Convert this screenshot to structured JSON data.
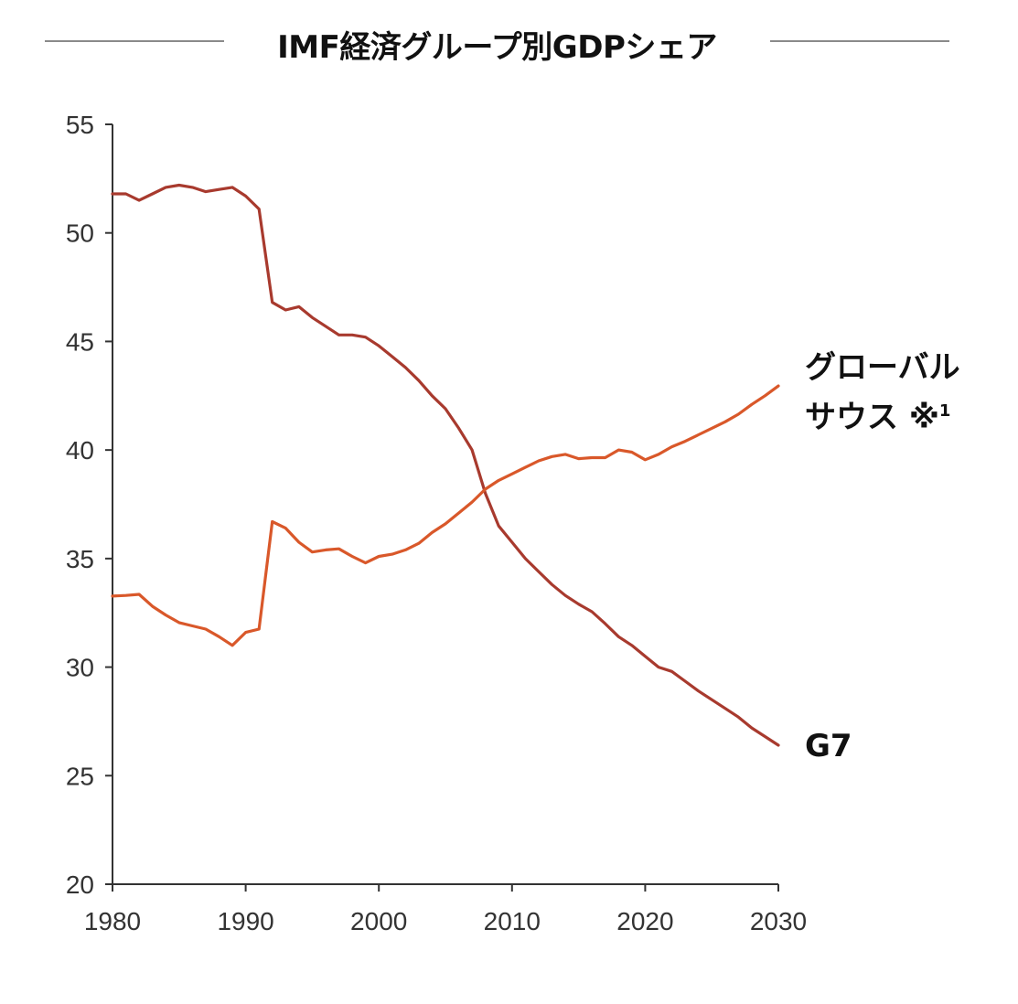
{
  "header": {
    "title": "IMF経済グループ別GDPシェア"
  },
  "colors": {
    "g7": "#A83A2E",
    "global_south": "#D9582A",
    "axis": "#333333",
    "title_rule": "#8A8A8A"
  },
  "labels": {
    "global_south_line1": "グローバル",
    "global_south_line2": "サウス ※",
    "global_south_footnote": "1",
    "g7": "G7"
  },
  "axes": {
    "y_ticks": [
      "55",
      "50",
      "45",
      "40",
      "35",
      "30",
      "25",
      "20"
    ],
    "x_ticks": [
      "1980",
      "1990",
      "2000",
      "2010",
      "2020",
      "2030"
    ]
  },
  "chart_data": {
    "type": "line",
    "title": "IMF経済グループ別GDPシェア",
    "xlabel": "",
    "ylabel": "",
    "xlim": [
      1980,
      2030
    ],
    "ylim": [
      20,
      55
    ],
    "grid": false,
    "legend": "direct labels at right end of lines",
    "x": [
      1980,
      1981,
      1982,
      1983,
      1984,
      1985,
      1986,
      1987,
      1988,
      1989,
      1990,
      1991,
      1992,
      1993,
      1994,
      1995,
      1996,
      1997,
      1998,
      1999,
      2000,
      2001,
      2002,
      2003,
      2004,
      2005,
      2006,
      2007,
      2008,
      2009,
      2010,
      2011,
      2012,
      2013,
      2014,
      2015,
      2016,
      2017,
      2018,
      2019,
      2020,
      2021,
      2022,
      2023,
      2024,
      2025,
      2026,
      2027,
      2028,
      2029,
      2030
    ],
    "series": [
      {
        "name": "G7",
        "color": "#A83A2E",
        "values": [
          51.8,
          51.8,
          51.5,
          51.8,
          52.1,
          52.2,
          52.1,
          51.9,
          52.0,
          52.1,
          51.7,
          51.1,
          46.8,
          46.45,
          46.6,
          46.1,
          45.7,
          45.3,
          45.3,
          45.2,
          44.8,
          44.3,
          43.8,
          43.2,
          42.5,
          41.9,
          41.0,
          40.0,
          38.0,
          36.5,
          35.75,
          35.0,
          34.4,
          33.8,
          33.3,
          32.9,
          32.55,
          32.0,
          31.4,
          31.0,
          30.5,
          30.0,
          29.8,
          29.35,
          28.9,
          28.5,
          28.1,
          27.7,
          27.2,
          26.8,
          26.4
        ]
      },
      {
        "name": "グローバルサウス ※1",
        "color": "#D9582A",
        "values": [
          33.27,
          33.3,
          33.35,
          32.8,
          32.4,
          32.05,
          31.9,
          31.75,
          31.4,
          31.0,
          31.6,
          31.75,
          36.7,
          36.4,
          35.75,
          35.3,
          35.4,
          35.45,
          35.1,
          34.8,
          35.1,
          35.2,
          35.4,
          35.7,
          36.2,
          36.6,
          37.1,
          37.6,
          38.2,
          38.6,
          38.9,
          39.2,
          39.5,
          39.7,
          39.8,
          39.6,
          39.65,
          39.65,
          40.0,
          39.9,
          39.55,
          39.8,
          40.15,
          40.4,
          40.7,
          41.0,
          41.3,
          41.65,
          42.1,
          42.5,
          42.95
        ]
      }
    ]
  }
}
